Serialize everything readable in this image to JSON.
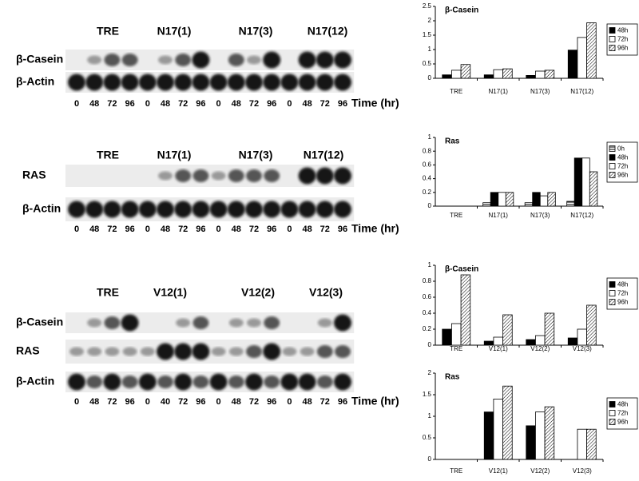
{
  "blots": [
    {
      "groups": [
        "TRE",
        "N17(1)",
        "N17(3)",
        "N17(12)"
      ],
      "rows": [
        "β-Casein",
        "β-Actin"
      ],
      "lanes": [
        "0",
        "48",
        "72",
        "96",
        "0",
        "48",
        "72",
        "96",
        "0",
        "48",
        "72",
        "96",
        "0",
        "48",
        "72",
        "96"
      ],
      "time_label": "Time (hr)"
    },
    {
      "groups": [
        "TRE",
        "N17(1)",
        "N17(3)",
        "N17(12)"
      ],
      "rows": [
        "RAS",
        "β-Actin"
      ],
      "lanes": [
        "0",
        "48",
        "72",
        "96",
        "0",
        "48",
        "72",
        "96",
        "0",
        "48",
        "72",
        "96",
        "0",
        "48",
        "72",
        "96"
      ],
      "time_label": "Time (hr)"
    },
    {
      "groups": [
        "TRE",
        "V12(1)",
        "V12(2)",
        "V12(3)"
      ],
      "rows": [
        "β-Casein",
        "RAS",
        "β-Actin"
      ],
      "lanes": [
        "0",
        "48",
        "72",
        "96",
        "0",
        "40",
        "72",
        "96",
        "0",
        "48",
        "72",
        "96",
        "0",
        "48",
        "72",
        "96"
      ],
      "time_label": "Time (hr)"
    }
  ],
  "chart_data": [
    {
      "type": "bar",
      "title": "β-Casein",
      "categories": [
        "TRE",
        "N17(1)",
        "N17(3)",
        "N17(12)"
      ],
      "ylim": [
        0,
        2.5
      ],
      "yticks": [
        0,
        0.5,
        1,
        1.5,
        2,
        2.5
      ],
      "legend": "right",
      "series": [
        {
          "name": "48h",
          "color": "#000000",
          "values": [
            0.12,
            0.12,
            0.1,
            0.98
          ]
        },
        {
          "name": "72h",
          "color": "#ffffff",
          "values": [
            0.28,
            0.3,
            0.25,
            1.42
          ]
        },
        {
          "name": "96h",
          "color": "#ffffff",
          "pattern": "diagonal",
          "values": [
            0.48,
            0.33,
            0.28,
            1.93
          ]
        }
      ]
    },
    {
      "type": "bar",
      "title": "Ras",
      "categories": [
        "TRE",
        "N17(1)",
        "N17(3)",
        "N17(12)"
      ],
      "ylim": [
        0,
        1
      ],
      "yticks": [
        0,
        0.2,
        0.4,
        0.6,
        0.8,
        1
      ],
      "legend": "right",
      "series": [
        {
          "name": "0h",
          "color": "#ffffff",
          "pattern": "horizontal",
          "values": [
            0,
            0.05,
            0.05,
            0.07
          ]
        },
        {
          "name": "48h",
          "color": "#000000",
          "values": [
            0,
            0.2,
            0.2,
            0.7
          ]
        },
        {
          "name": "72h",
          "color": "#ffffff",
          "values": [
            0,
            0.2,
            0.15,
            0.7
          ]
        },
        {
          "name": "96h",
          "color": "#ffffff",
          "pattern": "diagonal",
          "values": [
            0,
            0.2,
            0.2,
            0.5
          ]
        }
      ]
    },
    {
      "type": "bar",
      "title": "β-Casein",
      "categories": [
        "TRE",
        "V12(1)",
        "V12(2)",
        "V12(3)"
      ],
      "ylim": [
        0,
        1
      ],
      "yticks": [
        0,
        0.2,
        0.4,
        0.6,
        0.8,
        1
      ],
      "legend": "right",
      "series": [
        {
          "name": "48h",
          "color": "#000000",
          "values": [
            0.2,
            0.05,
            0.07,
            0.09
          ]
        },
        {
          "name": "72h",
          "color": "#ffffff",
          "values": [
            0.27,
            0.1,
            0.12,
            0.2
          ]
        },
        {
          "name": "96h",
          "color": "#ffffff",
          "pattern": "diagonal",
          "values": [
            0.88,
            0.38,
            0.4,
            0.5
          ]
        }
      ]
    },
    {
      "type": "bar",
      "title": "Ras",
      "categories": [
        "TRE",
        "V12(1)",
        "V12(2)",
        "V12(3)"
      ],
      "ylim": [
        0,
        2
      ],
      "yticks": [
        0,
        0.5,
        1,
        1.5,
        2
      ],
      "legend": "right",
      "series": [
        {
          "name": "48h",
          "color": "#000000",
          "values": [
            0,
            1.1,
            0.78,
            0
          ]
        },
        {
          "name": "72h",
          "color": "#ffffff",
          "values": [
            0,
            1.4,
            1.1,
            0.7
          ]
        },
        {
          "name": "96h",
          "color": "#ffffff",
          "pattern": "diagonal",
          "values": [
            0,
            1.7,
            1.22,
            0.7
          ]
        }
      ]
    }
  ]
}
